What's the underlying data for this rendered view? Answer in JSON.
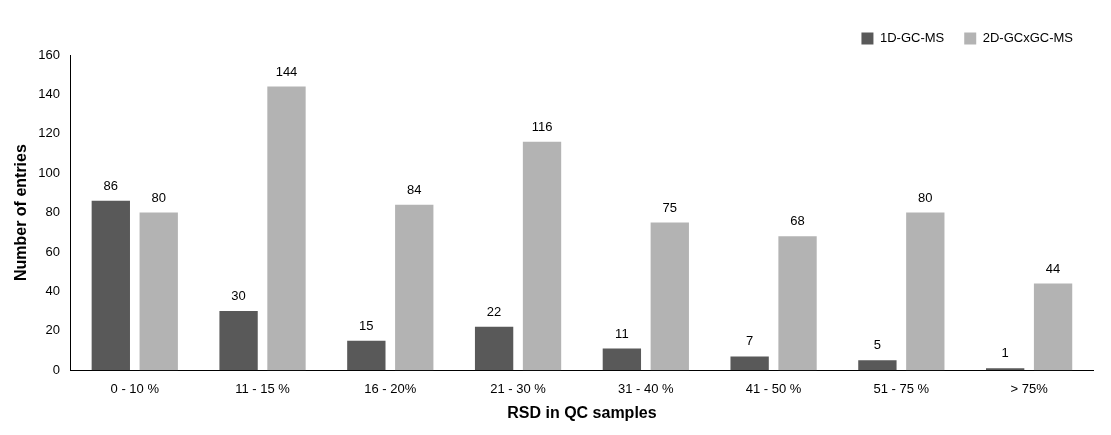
{
  "chart_data": {
    "type": "bar",
    "xlabel": "RSD in QC samples",
    "ylabel": "Number of entries",
    "categories": [
      "0 - 10 %",
      "11 - 15 %",
      "16 - 20%",
      "21 - 30 %",
      "31 - 40 %",
      "41 - 50 %",
      "51 - 75 %",
      "> 75%"
    ],
    "series": [
      {
        "name": "1D-GC-MS",
        "color": "#595959",
        "values": [
          86,
          30,
          15,
          22,
          11,
          7,
          5,
          1
        ]
      },
      {
        "name": "2D-GCxGC-MS",
        "color": "#b3b3b3",
        "values": [
          80,
          144,
          84,
          116,
          75,
          68,
          80,
          44
        ]
      }
    ],
    "ylim": [
      0,
      160
    ],
    "yticks": [
      0,
      20,
      40,
      60,
      80,
      100,
      120,
      140,
      160
    ],
    "grid": false,
    "legend": "top right",
    "data_labels": true
  }
}
